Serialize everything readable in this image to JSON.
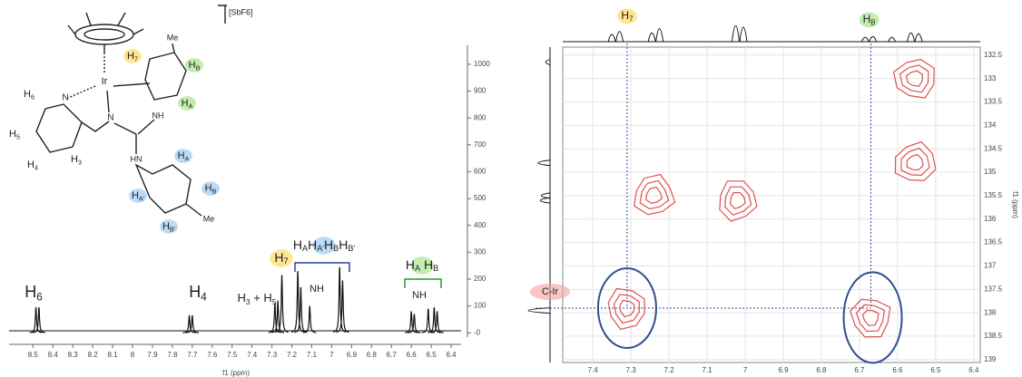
{
  "structure": {
    "counterion": "[SbF6]",
    "ir": "Ir",
    "n1": "N",
    "n2": "N",
    "nh1": "NH",
    "nh2": "HN",
    "me1": "Me",
    "me2": "Me",
    "h6": [
      "H",
      "6"
    ],
    "h5": [
      "H",
      "5"
    ],
    "h4": [
      "H",
      "4"
    ],
    "h3": [
      "H",
      "3"
    ],
    "h7": [
      "H",
      "7"
    ],
    "hb": [
      "H",
      "B"
    ],
    "ha": [
      "H",
      "A"
    ],
    "ha2": [
      "H",
      "A"
    ],
    "ha3": [
      "H",
      "A'"
    ],
    "hb2": [
      "H",
      "B"
    ],
    "hb3": [
      "H",
      "B'"
    ]
  },
  "chart_data": [
    {
      "type": "spectrum",
      "xlabel": "f1 (ppm)",
      "xlim": [
        8.62,
        6.35
      ],
      "xticks": [
        8.5,
        8.4,
        8.3,
        8.2,
        8.1,
        8.0,
        7.9,
        7.8,
        7.7,
        7.6,
        7.5,
        7.4,
        7.3,
        7.2,
        7.1,
        7.0,
        6.9,
        6.8,
        6.7,
        6.6,
        6.5,
        6.4
      ],
      "ylim": [
        -60,
        1020
      ],
      "yticks": [
        {
          "value": 0,
          "label": "-0"
        },
        100,
        200,
        300,
        400,
        500,
        600,
        700,
        800,
        900,
        1000
      ],
      "x": [
        8.485,
        8.47,
        7.715,
        7.7,
        7.285,
        7.27,
        7.25,
        7.17,
        7.155,
        7.11,
        6.96,
        6.945,
        6.6,
        6.585,
        6.515,
        6.485,
        6.47
      ],
      "values": [
        95,
        95,
        65,
        65,
        110,
        120,
        215,
        230,
        170,
        100,
        245,
        195,
        80,
        70,
        90,
        95,
        80
      ],
      "color": "#111111",
      "labels": {
        "h6": [
          "H",
          "6"
        ],
        "h4": [
          "H",
          "4"
        ],
        "h35": [
          "H",
          "3",
          " + H",
          "5"
        ],
        "h7": [
          "H",
          "7"
        ],
        "nh1": [
          "NH"
        ],
        "habb": [
          "H",
          "A",
          "H",
          "A'",
          "H",
          "B",
          "H",
          "B'"
        ],
        "nh2": [
          "NH"
        ],
        "hab": [
          "H",
          "A",
          " H",
          "B"
        ]
      }
    },
    {
      "type": "hmbc",
      "ylabel": "f1 (ppm)",
      "xlim": [
        7.479,
        6.383
      ],
      "xticks": [
        7.4,
        7.3,
        7.2,
        7.1,
        7.0,
        6.9,
        6.8,
        6.7,
        6.6,
        6.5,
        6.4
      ],
      "ylim": [
        132.33,
        139.06
      ],
      "yticks": [
        132.5,
        133.0,
        133.5,
        134.0,
        134.5,
        135.0,
        135.5,
        136.0,
        136.5,
        137.0,
        137.5,
        138.0,
        138.5,
        139.0
      ],
      "x": [
        6.555,
        6.555,
        7.24,
        7.02,
        7.31,
        6.67
      ],
      "y": [
        133.0,
        134.8,
        135.5,
        135.6,
        137.9,
        138.1
      ],
      "color": "#e05050",
      "top_projection": {
        "x": [
          7.35,
          7.33,
          7.245,
          7.225,
          7.025,
          7.005,
          6.685,
          6.665,
          6.615,
          6.565,
          6.545
        ],
        "values": [
          10,
          14,
          12,
          18,
          22,
          20,
          6,
          7,
          6,
          12,
          11
        ]
      },
      "left_projection": {
        "y": [
          132.65,
          134.8,
          135.5,
          135.6,
          137.95
        ],
        "values": [
          8,
          22,
          16,
          18,
          40
        ]
      },
      "labels": {
        "h7": [
          "H",
          "7"
        ],
        "hb": [
          "H",
          "B"
        ],
        "cir": [
          "C-Ir"
        ]
      }
    }
  ]
}
